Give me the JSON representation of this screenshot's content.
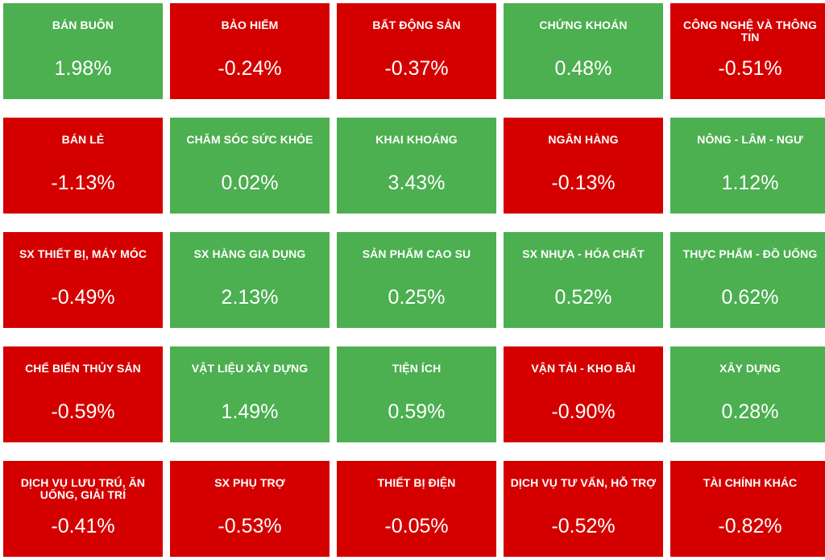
{
  "colors": {
    "up": "#4caf50",
    "down": "#d40000"
  },
  "sectors": [
    {
      "name": "BÁN BUÔN",
      "change": "1.98%",
      "direction": "up"
    },
    {
      "name": "BẢO HIỂM",
      "change": "-0.24%",
      "direction": "down"
    },
    {
      "name": "BẤT ĐỘNG SẢN",
      "change": "-0.37%",
      "direction": "down"
    },
    {
      "name": "CHỨNG KHOÁN",
      "change": "0.48%",
      "direction": "up"
    },
    {
      "name": "CÔNG NGHỆ VÀ THÔNG TIN",
      "change": "-0.51%",
      "direction": "down"
    },
    {
      "name": "BÁN LẺ",
      "change": "-1.13%",
      "direction": "down"
    },
    {
      "name": "CHĂM SÓC SỨC KHỎE",
      "change": "0.02%",
      "direction": "up"
    },
    {
      "name": "KHAI KHOÁNG",
      "change": "3.43%",
      "direction": "up"
    },
    {
      "name": "NGÂN HÀNG",
      "change": "-0.13%",
      "direction": "down"
    },
    {
      "name": "NÔNG - LÂM - NGƯ",
      "change": "1.12%",
      "direction": "up"
    },
    {
      "name": "SX THIẾT BỊ, MÁY MÓC",
      "change": "-0.49%",
      "direction": "down"
    },
    {
      "name": "SX HÀNG GIA DỤNG",
      "change": "2.13%",
      "direction": "up"
    },
    {
      "name": "SẢN PHẨM CAO SU",
      "change": "0.25%",
      "direction": "up"
    },
    {
      "name": "SX NHỰA - HÓA CHẤT",
      "change": "0.52%",
      "direction": "up"
    },
    {
      "name": "THỰC PHẨM - ĐỒ UỐNG",
      "change": "0.62%",
      "direction": "up"
    },
    {
      "name": "CHẾ BIẾN THỦY SẢN",
      "change": "-0.59%",
      "direction": "down"
    },
    {
      "name": "VẬT LIỆU XÂY DỰNG",
      "change": "1.49%",
      "direction": "up"
    },
    {
      "name": "TIỆN ÍCH",
      "change": "0.59%",
      "direction": "up"
    },
    {
      "name": "VẬN TẢI - KHO BÃI",
      "change": "-0.90%",
      "direction": "down"
    },
    {
      "name": "XÂY DỰNG",
      "change": "0.28%",
      "direction": "up"
    },
    {
      "name": "DỊCH VỤ LƯU TRÚ, ĂN UỐNG, GIẢI TRÍ",
      "change": "-0.41%",
      "direction": "down"
    },
    {
      "name": "SX PHỤ TRỢ",
      "change": "-0.53%",
      "direction": "down"
    },
    {
      "name": "THIẾT BỊ ĐIỆN",
      "change": "-0.05%",
      "direction": "down"
    },
    {
      "name": "DỊCH VỤ TƯ VẤN, HỖ TRỢ",
      "change": "-0.52%",
      "direction": "down"
    },
    {
      "name": "TÀI CHÍNH KHÁC",
      "change": "-0.82%",
      "direction": "down"
    }
  ]
}
